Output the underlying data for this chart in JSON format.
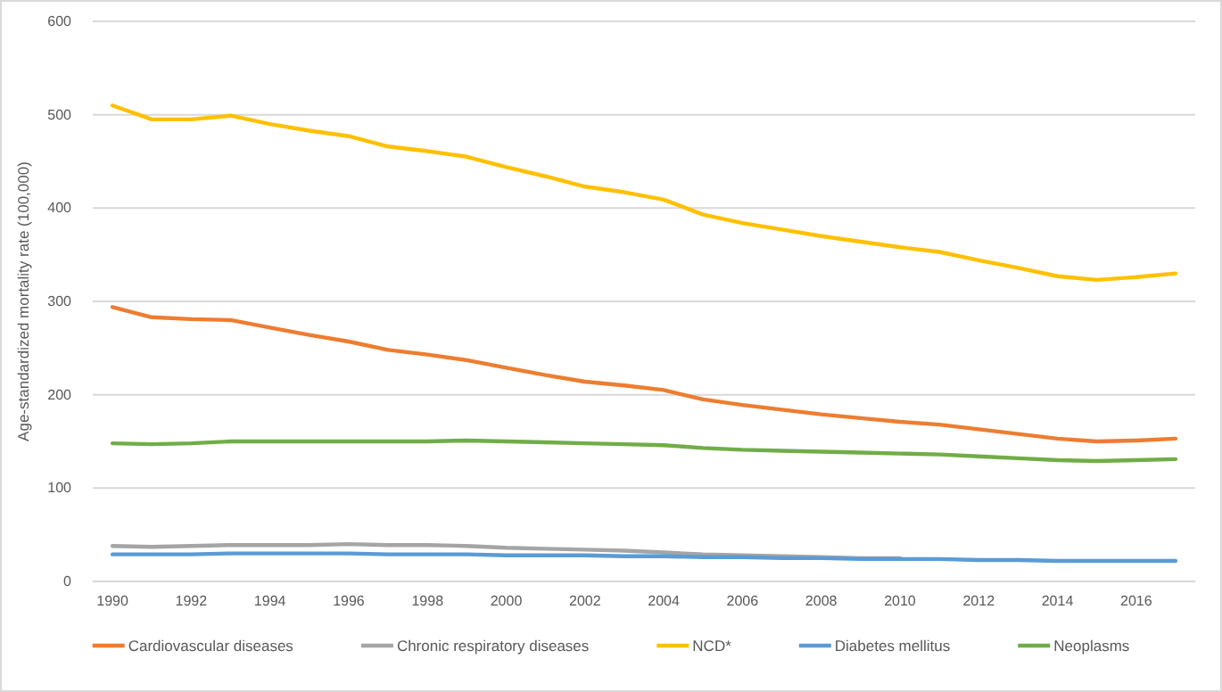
{
  "chart_data": {
    "type": "line",
    "ylabel": "Age-standardized mortality rate (100,000)",
    "x": [
      1990,
      1991,
      1992,
      1993,
      1994,
      1995,
      1996,
      1997,
      1998,
      1999,
      2000,
      2001,
      2002,
      2003,
      2004,
      2005,
      2006,
      2007,
      2008,
      2009,
      2010,
      2011,
      2012,
      2013,
      2014,
      2015,
      2016,
      2017
    ],
    "xlim": [
      1989.5,
      2017.5
    ],
    "xticks": [
      1990,
      1992,
      1994,
      1996,
      1998,
      2000,
      2002,
      2004,
      2006,
      2008,
      2010,
      2012,
      2014,
      2016
    ],
    "ylim": [
      0,
      600
    ],
    "yticks": [
      0,
      100,
      200,
      300,
      400,
      500,
      600
    ],
    "grid": "y",
    "legend": "bottom",
    "marker": "none",
    "line_style": "solid",
    "series": [
      {
        "name": "Cardiovascular diseases",
        "color": "#ed7d31",
        "values": [
          294,
          283,
          281,
          280,
          272,
          264,
          257,
          248,
          243,
          237,
          229,
          221,
          214,
          210,
          205,
          195,
          189,
          184,
          179,
          175,
          171,
          168,
          163,
          158,
          153,
          150,
          151,
          153
        ]
      },
      {
        "name": "Chronic respiratory diseases",
        "color": "#a5a5a5",
        "values": [
          38,
          37,
          38,
          39,
          39,
          39,
          40,
          39,
          39,
          38,
          36,
          35,
          34,
          33,
          31,
          29,
          28,
          27,
          26,
          25,
          25,
          null,
          null,
          null,
          null,
          null,
          null,
          null
        ]
      },
      {
        "name": "NCD*",
        "color": "#ffc000",
        "values": [
          510,
          495,
          495,
          499,
          490,
          483,
          477,
          466,
          461,
          455,
          444,
          434,
          423,
          417,
          409,
          393,
          384,
          377,
          370,
          364,
          358,
          353,
          344,
          336,
          327,
          323,
          326,
          330
        ]
      },
      {
        "name": "Diabetes mellitus",
        "color": "#5b9bd5",
        "values": [
          29,
          29,
          29,
          30,
          30,
          30,
          30,
          29,
          29,
          29,
          28,
          28,
          28,
          27,
          27,
          26,
          26,
          25,
          25,
          24,
          24,
          24,
          23,
          23,
          22,
          22,
          22,
          22
        ]
      },
      {
        "name": "Neoplasms",
        "color": "#70ad47",
        "values": [
          148,
          147,
          148,
          150,
          150,
          150,
          150,
          150,
          150,
          151,
          150,
          149,
          148,
          147,
          146,
          143,
          141,
          140,
          139,
          138,
          137,
          136,
          134,
          132,
          130,
          129,
          130,
          131
        ]
      }
    ]
  }
}
